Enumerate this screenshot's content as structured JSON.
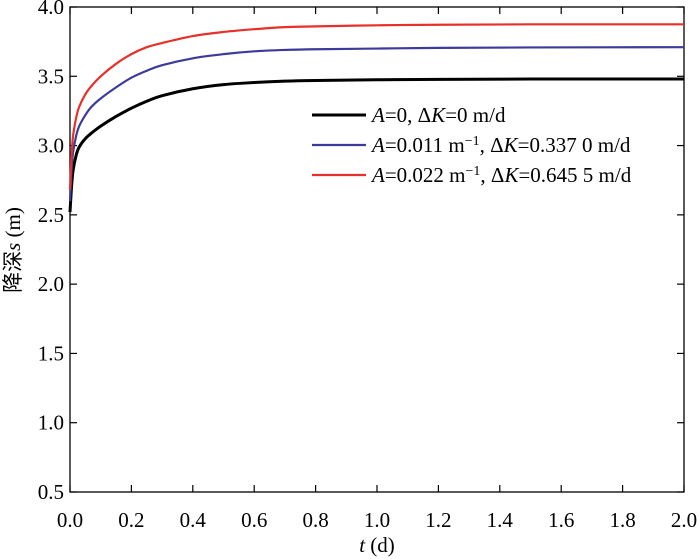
{
  "chart_data": {
    "type": "line",
    "xlabel": {
      "var": "t",
      "unit": " (d)"
    },
    "ylabel": {
      "cn": "降深",
      "var": "s",
      "unit": " (m)"
    },
    "xlim": [
      0,
      2.0
    ],
    "ylim": [
      0.5,
      4.0
    ],
    "xticks": [
      0.0,
      0.2,
      0.4,
      0.6,
      0.8,
      1.0,
      1.2,
      1.4,
      1.6,
      1.8,
      2.0
    ],
    "xtick_labels": [
      "0.0",
      "0.2",
      "0.4",
      "0.6",
      "0.8",
      "1.0",
      "1.2",
      "1.4",
      "1.6",
      "1.8",
      "2.0"
    ],
    "yticks": [
      0.5,
      1.0,
      1.5,
      2.0,
      2.5,
      3.0,
      3.5,
      4.0
    ],
    "ytick_labels": [
      "0.5",
      "1.0",
      "1.5",
      "2.0",
      "2.5",
      "3.0",
      "3.5",
      "4.0"
    ],
    "grid": false,
    "legend_position": "right",
    "series": [
      {
        "name": "A=0,  ΔK=0 m/d",
        "legend": {
          "A": "A",
          "a_val": "=0,  Δ",
          "K": "K",
          "k_val": "=0 m/d"
        },
        "color": "#000000",
        "x": [
          0.0,
          0.005,
          0.01,
          0.02,
          0.03,
          0.05,
          0.07,
          0.1,
          0.15,
          0.2,
          0.25,
          0.3,
          0.4,
          0.5,
          0.6,
          0.7,
          0.8,
          1.0,
          1.2,
          1.5,
          2.0
        ],
        "y": [
          2.52,
          2.7,
          2.82,
          2.93,
          2.99,
          3.05,
          3.09,
          3.14,
          3.21,
          3.27,
          3.32,
          3.36,
          3.41,
          3.44,
          3.455,
          3.465,
          3.47,
          3.475,
          3.478,
          3.48,
          3.48
        ]
      },
      {
        "name": "A=0.011 m−1, ΔK=0.337 0 m/d",
        "legend": {
          "A": "A",
          "a_val": "=0.011 m",
          "sup": "−1",
          "mid": ", Δ",
          "K": "K",
          "k_val": "=0.337 0 m/d"
        },
        "color": "#3b3b9b",
        "x": [
          0.0,
          0.005,
          0.01,
          0.02,
          0.03,
          0.05,
          0.07,
          0.1,
          0.15,
          0.2,
          0.25,
          0.3,
          0.4,
          0.5,
          0.6,
          0.7,
          0.8,
          1.0,
          1.2,
          1.5,
          2.0
        ],
        "y": [
          2.6,
          2.82,
          2.95,
          3.07,
          3.14,
          3.22,
          3.28,
          3.34,
          3.42,
          3.49,
          3.54,
          3.58,
          3.63,
          3.66,
          3.68,
          3.69,
          3.695,
          3.7,
          3.705,
          3.708,
          3.71
        ]
      },
      {
        "name": "A=0.022 m−1, ΔK=0.645 5 m/d",
        "legend": {
          "A": "A",
          "a_val": "=0.022 m",
          "sup": "−1",
          "mid": ", Δ",
          "K": "K",
          "k_val": "=0.645 5 m/d"
        },
        "color": "#e8302a",
        "x": [
          0.0,
          0.005,
          0.01,
          0.02,
          0.03,
          0.05,
          0.07,
          0.1,
          0.15,
          0.2,
          0.25,
          0.3,
          0.4,
          0.5,
          0.6,
          0.7,
          0.8,
          1.0,
          1.2,
          1.5,
          2.0
        ],
        "y": [
          2.68,
          2.93,
          3.07,
          3.2,
          3.28,
          3.37,
          3.43,
          3.5,
          3.59,
          3.66,
          3.71,
          3.74,
          3.79,
          3.82,
          3.84,
          3.855,
          3.86,
          3.868,
          3.872,
          3.875,
          3.875
        ]
      }
    ]
  }
}
